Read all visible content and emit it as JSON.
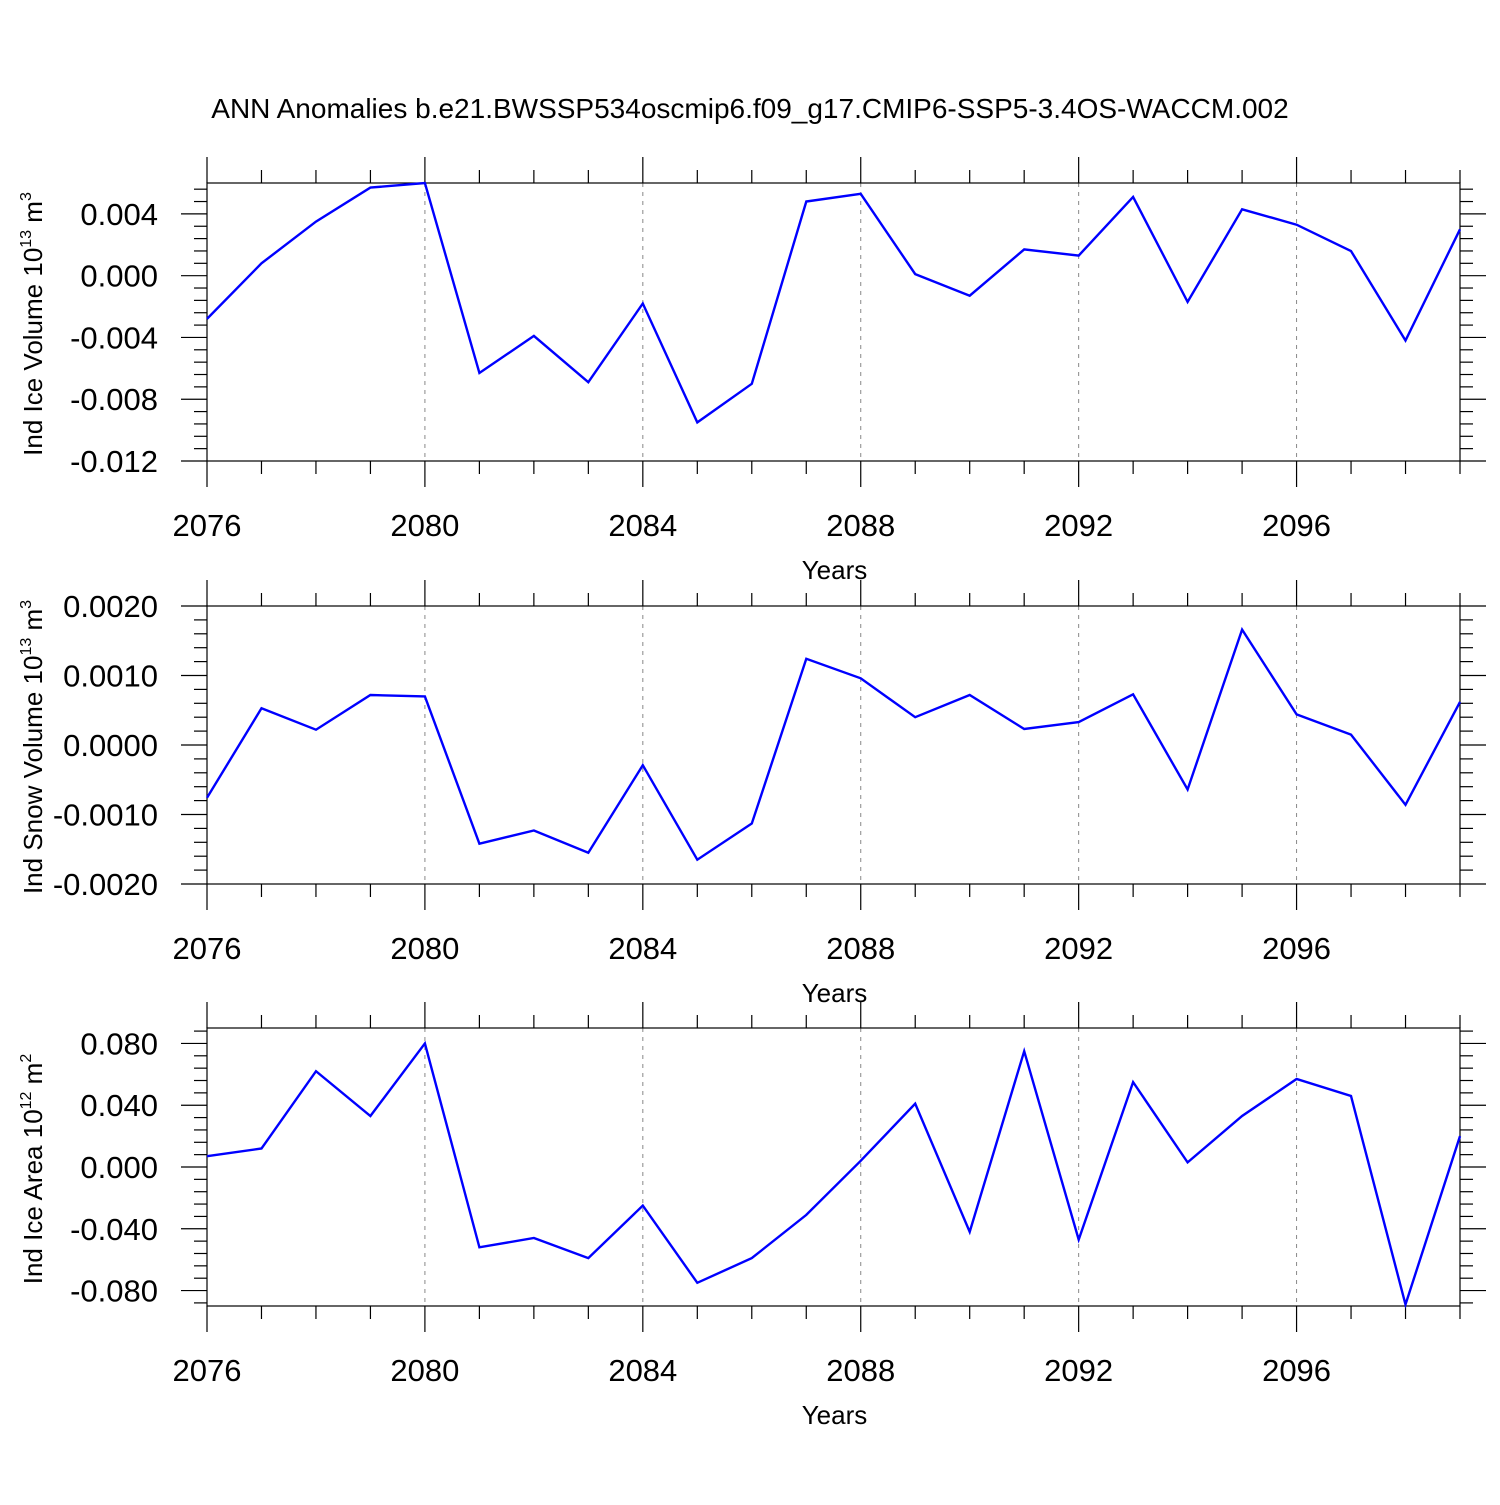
{
  "title": "ANN Anomalies b.e21.BWSSP534oscmip6.f09_g17.CMIP6-SSP5-3.4OS-WACCM.002",
  "colors": {
    "line": "#0000ff",
    "axis": "#000000",
    "grid": "#888888"
  },
  "chart_data": [
    {
      "type": "line",
      "xlabel": "Years",
      "ylabel_main": "Ind Ice Volume 10",
      "ylabel_exp": "13",
      "ylabel_unit": " m",
      "ylabel_unit_exp": "3",
      "xlim": [
        2076,
        2099
      ],
      "ylim": [
        -0.012,
        0.006
      ],
      "xticks": [
        2076,
        2080,
        2084,
        2088,
        2092,
        2096
      ],
      "yticks": [
        -0.012,
        -0.008,
        -0.004,
        0.0,
        0.004
      ],
      "ytick_labels": [
        "-0.012",
        "-0.008",
        "-0.004",
        "0.000",
        "0.004"
      ],
      "grid": "x-major dashed",
      "x": [
        2076,
        2077,
        2078,
        2079,
        2080,
        2081,
        2082,
        2083,
        2084,
        2085,
        2086,
        2087,
        2088,
        2089,
        2090,
        2091,
        2092,
        2093,
        2094,
        2095,
        2096,
        2097,
        2098,
        2099
      ],
      "values": [
        -0.0028,
        0.0008,
        0.0035,
        0.0057,
        0.006,
        -0.0063,
        -0.0039,
        -0.0069,
        -0.0018,
        -0.0095,
        -0.007,
        0.0048,
        0.0053,
        0.0001,
        -0.0013,
        0.0017,
        0.0013,
        0.0051,
        -0.0017,
        0.0043,
        0.0033,
        0.0016,
        -0.0042,
        0.003
      ]
    },
    {
      "type": "line",
      "xlabel": "Years",
      "ylabel_main": "Ind Snow Volume 10",
      "ylabel_exp": "13",
      "ylabel_unit": " m",
      "ylabel_unit_exp": "3",
      "xlim": [
        2076,
        2099
      ],
      "ylim": [
        -0.002,
        0.002
      ],
      "xticks": [
        2076,
        2080,
        2084,
        2088,
        2092,
        2096
      ],
      "yticks": [
        -0.002,
        -0.001,
        0.0,
        0.001,
        0.002
      ],
      "ytick_labels": [
        "-0.0020",
        "-0.0010",
        "0.0000",
        "0.0010",
        "0.0020"
      ],
      "grid": "x-major dashed",
      "x": [
        2076,
        2077,
        2078,
        2079,
        2080,
        2081,
        2082,
        2083,
        2084,
        2085,
        2086,
        2087,
        2088,
        2089,
        2090,
        2091,
        2092,
        2093,
        2094,
        2095,
        2096,
        2097,
        2098,
        2099
      ],
      "values": [
        -0.00076,
        0.00053,
        0.00022,
        0.00072,
        0.0007,
        -0.00142,
        -0.00123,
        -0.00155,
        -0.00029,
        -0.00165,
        -0.00113,
        0.00124,
        0.00096,
        0.0004,
        0.00072,
        0.00023,
        0.00033,
        0.00073,
        -0.00064,
        0.00166,
        0.00044,
        0.00015,
        -0.00086,
        0.00062
      ]
    },
    {
      "type": "line",
      "xlabel": "Years",
      "ylabel_main": "Ind Ice Area 10",
      "ylabel_exp": "12",
      "ylabel_unit": " m",
      "ylabel_unit_exp": "2",
      "xlim": [
        2076,
        2099
      ],
      "ylim": [
        -0.09,
        0.09
      ],
      "xticks": [
        2076,
        2080,
        2084,
        2088,
        2092,
        2096
      ],
      "yticks": [
        -0.08,
        -0.04,
        0.0,
        0.04,
        0.08
      ],
      "ytick_labels": [
        "-0.080",
        "-0.040",
        "0.000",
        "0.040",
        "0.080"
      ],
      "grid": "x-major dashed",
      "x": [
        2076,
        2077,
        2078,
        2079,
        2080,
        2081,
        2082,
        2083,
        2084,
        2085,
        2086,
        2087,
        2088,
        2089,
        2090,
        2091,
        2092,
        2093,
        2094,
        2095,
        2096,
        2097,
        2098,
        2099
      ],
      "values": [
        0.007,
        0.012,
        0.062,
        0.033,
        0.08,
        -0.052,
        -0.046,
        -0.059,
        -0.025,
        -0.075,
        -0.059,
        -0.031,
        0.004,
        0.041,
        -0.042,
        0.075,
        -0.047,
        0.055,
        0.003,
        0.033,
        0.057,
        0.046,
        -0.089,
        0.02
      ]
    }
  ]
}
